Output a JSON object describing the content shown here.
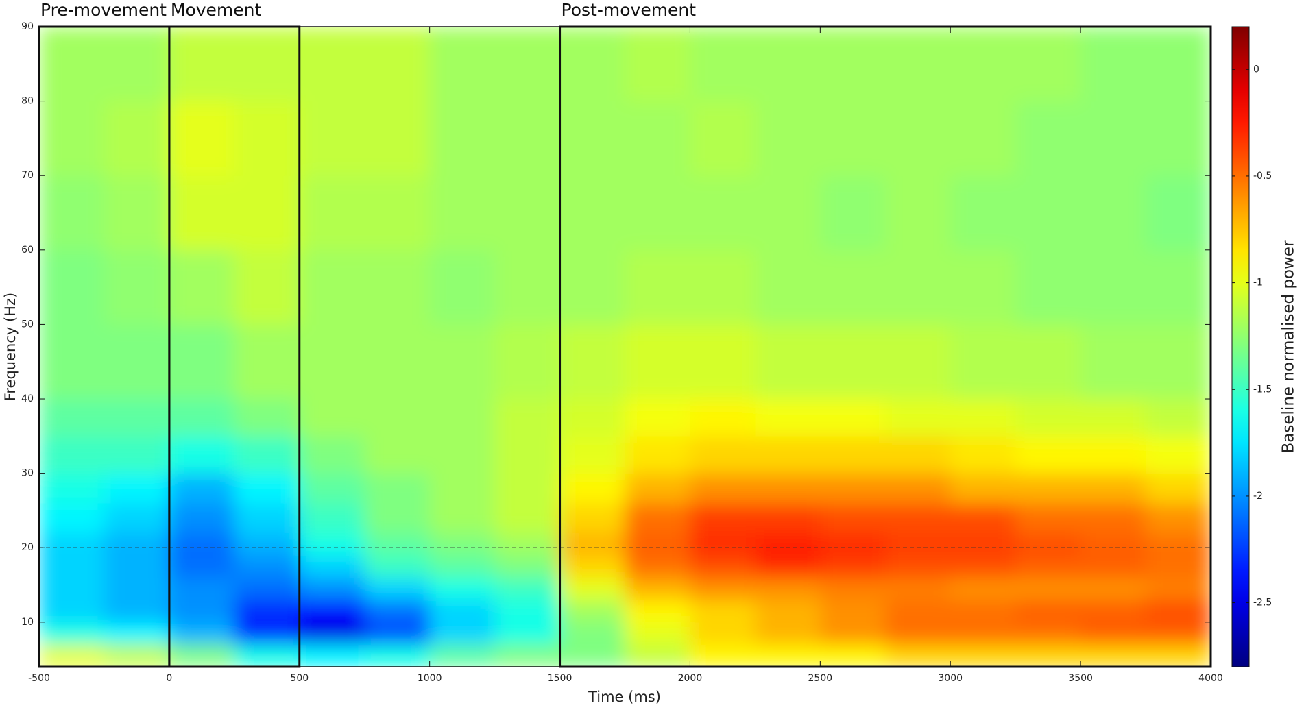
{
  "chart_data": {
    "type": "heatmap",
    "xlabel": "Time (ms)",
    "ylabel": "Frequency (Hz)",
    "colorbar_label": "Baseline normalised power",
    "colormap": "jet",
    "xlim": [
      -500,
      4000
    ],
    "ylim": [
      4,
      90
    ],
    "zlim": [
      -2.8,
      0.2
    ],
    "xticks": [
      -500,
      0,
      500,
      1000,
      1500,
      2000,
      2500,
      3000,
      3500,
      4000
    ],
    "yticks": [
      10,
      20,
      30,
      40,
      50,
      60,
      70,
      80,
      90
    ],
    "zticks": [
      0,
      -0.5,
      -1,
      -1.5,
      -2,
      -2.5
    ],
    "xbins": [
      -500,
      -250,
      0,
      250,
      500,
      750,
      1000,
      1250,
      1500,
      1750,
      2000,
      2250,
      2500,
      2750,
      3000,
      3250,
      3500,
      3750,
      4000
    ],
    "ybins": [
      4,
      7,
      10,
      13,
      16,
      19,
      22,
      26,
      30,
      35,
      40,
      50,
      60,
      70,
      80,
      90
    ],
    "values": [
      [
        -1.0,
        -1.1,
        -1.3,
        -1.6,
        -1.7,
        -1.6,
        -1.4,
        -1.3,
        -1.3,
        -1.1,
        -0.9,
        -0.9,
        -0.9,
        -0.8,
        -0.8,
        -0.8,
        -0.8,
        -0.8
      ],
      [
        -1.6,
        -1.7,
        -1.9,
        -2.3,
        -2.5,
        -2.2,
        -1.8,
        -1.6,
        -1.3,
        -1.0,
        -0.8,
        -0.7,
        -0.6,
        -0.5,
        -0.5,
        -0.5,
        -0.45,
        -0.45
      ],
      [
        -1.8,
        -1.9,
        -2.0,
        -2.3,
        -2.4,
        -2.1,
        -1.8,
        -1.6,
        -1.2,
        -0.9,
        -0.8,
        -0.7,
        -0.6,
        -0.5,
        -0.5,
        -0.45,
        -0.45,
        -0.4
      ],
      [
        -1.8,
        -1.9,
        -2.0,
        -2.1,
        -2.0,
        -1.8,
        -1.6,
        -1.5,
        -1.0,
        -0.7,
        -0.6,
        -0.6,
        -0.55,
        -0.55,
        -0.6,
        -0.6,
        -0.6,
        -0.55
      ],
      [
        -1.8,
        -1.9,
        -2.1,
        -2.0,
        -1.8,
        -1.5,
        -1.4,
        -1.3,
        -0.8,
        -0.5,
        -0.4,
        -0.3,
        -0.35,
        -0.4,
        -0.4,
        -0.45,
        -0.45,
        -0.5
      ],
      [
        -1.8,
        -1.9,
        -2.1,
        -1.9,
        -1.6,
        -1.4,
        -1.3,
        -1.2,
        -0.7,
        -0.45,
        -0.3,
        -0.25,
        -0.3,
        -0.35,
        -0.35,
        -0.4,
        -0.45,
        -0.5
      ],
      [
        -1.7,
        -1.8,
        -2.0,
        -1.8,
        -1.5,
        -1.3,
        -1.2,
        -1.1,
        -0.8,
        -0.5,
        -0.35,
        -0.35,
        -0.4,
        -0.4,
        -0.4,
        -0.5,
        -0.5,
        -0.6
      ],
      [
        -1.6,
        -1.7,
        -1.9,
        -1.7,
        -1.4,
        -1.3,
        -1.2,
        -1.1,
        -0.9,
        -0.7,
        -0.6,
        -0.6,
        -0.6,
        -0.6,
        -0.7,
        -0.7,
        -0.7,
        -0.8
      ],
      [
        -1.5,
        -1.5,
        -1.6,
        -1.5,
        -1.3,
        -1.2,
        -1.2,
        -1.1,
        -1.0,
        -0.85,
        -0.8,
        -0.8,
        -0.8,
        -0.8,
        -0.85,
        -0.9,
        -0.9,
        -0.95
      ],
      [
        -1.4,
        -1.4,
        -1.4,
        -1.3,
        -1.2,
        -1.2,
        -1.2,
        -1.1,
        -1.05,
        -0.95,
        -0.9,
        -0.95,
        -0.95,
        -1.0,
        -1.0,
        -1.05,
        -1.05,
        -1.1
      ],
      [
        -1.3,
        -1.3,
        -1.3,
        -1.2,
        -1.2,
        -1.2,
        -1.2,
        -1.15,
        -1.1,
        -1.05,
        -1.05,
        -1.1,
        -1.1,
        -1.1,
        -1.15,
        -1.15,
        -1.2,
        -1.2
      ],
      [
        -1.3,
        -1.25,
        -1.2,
        -1.1,
        -1.2,
        -1.2,
        -1.25,
        -1.2,
        -1.2,
        -1.15,
        -1.15,
        -1.2,
        -1.2,
        -1.2,
        -1.2,
        -1.25,
        -1.25,
        -1.25
      ],
      [
        -1.25,
        -1.2,
        -1.05,
        -1.05,
        -1.15,
        -1.15,
        -1.2,
        -1.2,
        -1.2,
        -1.2,
        -1.2,
        -1.2,
        -1.25,
        -1.2,
        -1.25,
        -1.25,
        -1.25,
        -1.3
      ],
      [
        -1.2,
        -1.15,
        -1.0,
        -1.05,
        -1.1,
        -1.1,
        -1.2,
        -1.2,
        -1.2,
        -1.2,
        -1.15,
        -1.2,
        -1.2,
        -1.2,
        -1.2,
        -1.25,
        -1.25,
        -1.25
      ],
      [
        -1.2,
        -1.2,
        -1.1,
        -1.1,
        -1.1,
        -1.1,
        -1.2,
        -1.2,
        -1.2,
        -1.15,
        -1.2,
        -1.2,
        -1.2,
        -1.2,
        -1.2,
        -1.2,
        -1.25,
        -1.25
      ]
    ],
    "hline": 20,
    "regions": [
      {
        "label": "Pre-movement",
        "start": -500,
        "end": 0
      },
      {
        "label": "Movement",
        "start": 0,
        "end": 500
      },
      {
        "label": "Post-movement",
        "start": 1500,
        "end": 4000
      }
    ]
  }
}
